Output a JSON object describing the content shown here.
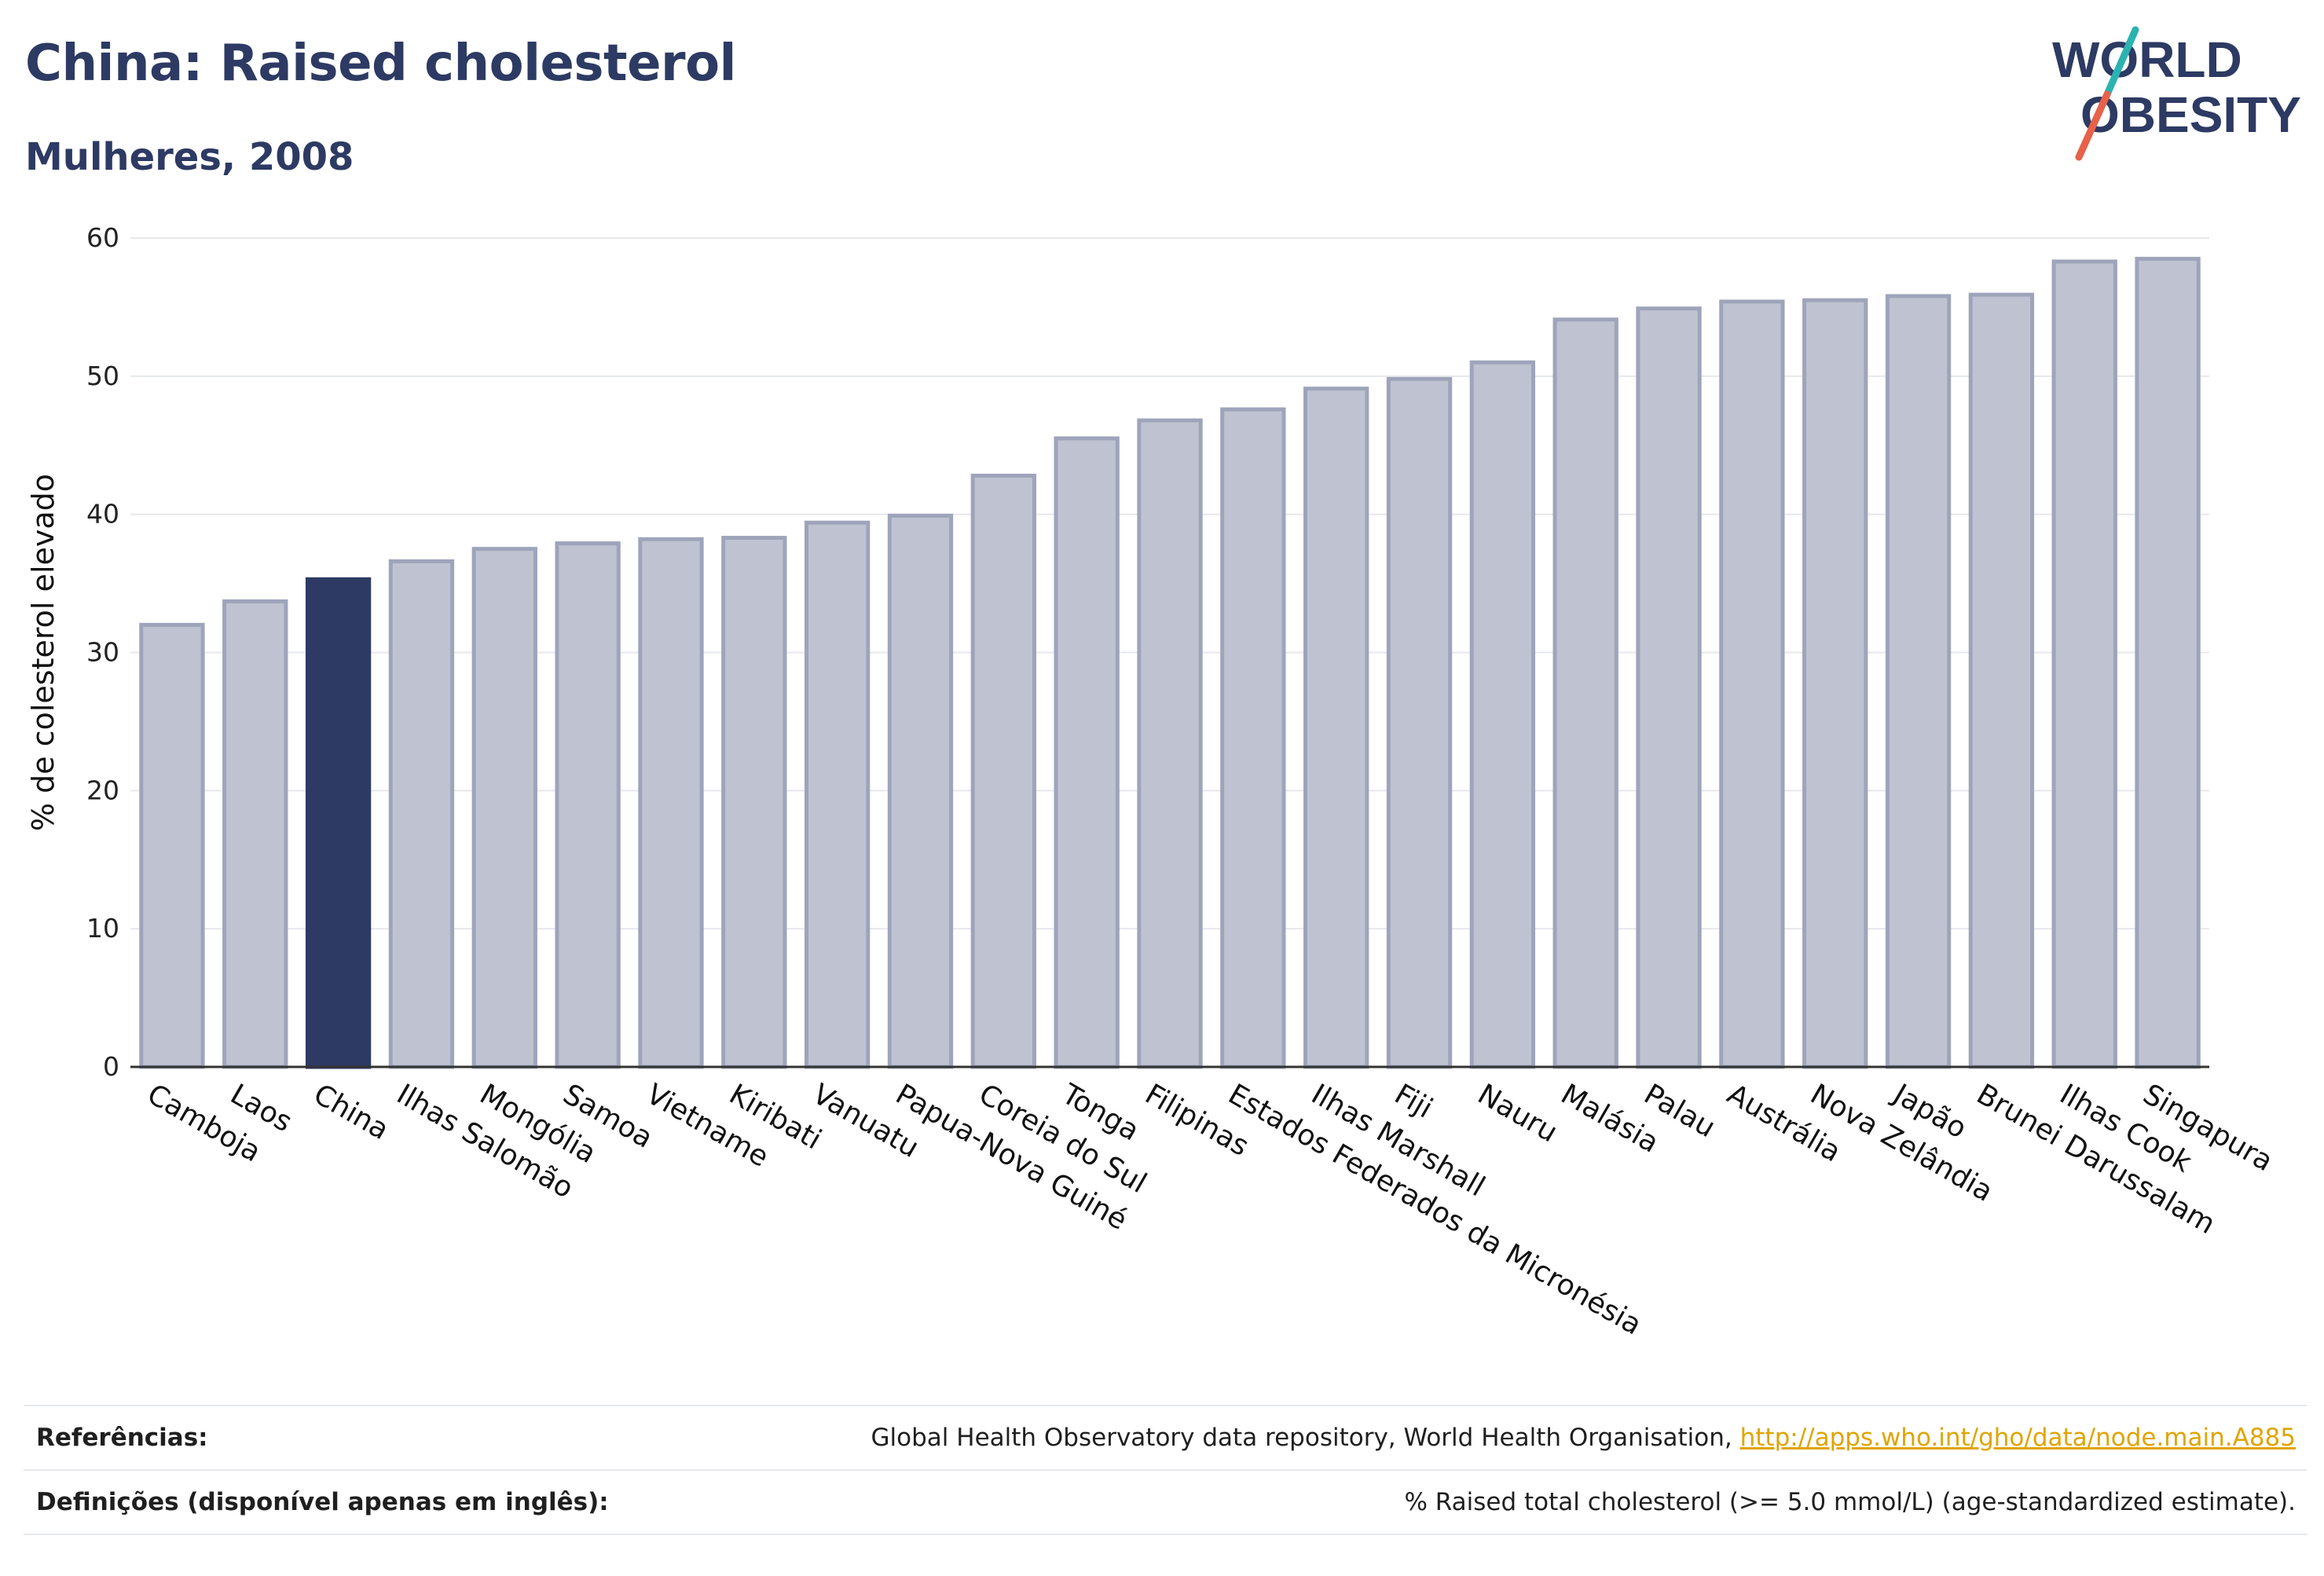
{
  "header": {
    "title": "China: Raised cholesterol",
    "subtitle": "Mulheres, 2008"
  },
  "logo": {
    "line1": "WORLD",
    "line2": "OBESITY",
    "brand_color": "#2d3a63",
    "slash_colors": [
      "#2ab3b1",
      "#e8614a"
    ]
  },
  "colors": {
    "bar_default_fill": "#bfc3d1",
    "bar_default_stroke": "#9ea4ba",
    "bar_highlight_fill": "#2d3a63",
    "grid": "#e6e8ee"
  },
  "chart_data": {
    "type": "bar",
    "ylabel": "% de colesterol elevado",
    "ylim": [
      0,
      60
    ],
    "yticks": [
      0,
      10,
      20,
      30,
      40,
      50,
      60
    ],
    "grid": true,
    "highlight": "China",
    "categories": [
      "Camboja",
      "Laos",
      "China",
      "Ilhas Salomão",
      "Mongólia",
      "Samoa",
      "Vietname",
      "Kiribati",
      "Vanuatu",
      "Papua-Nova Guiné",
      "Coreia do Sul",
      "Tonga",
      "Filipinas",
      "Estados Federados da Micronésia",
      "Ilhas Marshall",
      "Fiji",
      "Nauru",
      "Malásia",
      "Palau",
      "Austrália",
      "Nova Zelândia",
      "Japão",
      "Brunei Darussalam",
      "Ilhas Cook",
      "Singapura"
    ],
    "values": [
      32.0,
      33.7,
      35.3,
      36.6,
      37.5,
      37.9,
      38.2,
      38.3,
      39.4,
      39.9,
      42.8,
      45.5,
      46.8,
      47.6,
      49.1,
      49.8,
      51.0,
      54.1,
      54.9,
      55.4,
      55.5,
      55.8,
      55.9,
      58.3,
      58.5
    ]
  },
  "footer": {
    "references_label": "Referências:",
    "references_text": "Global Health Observatory data repository, World Health Organisation, ",
    "references_link": "http://apps.who.int/gho/data/node.main.A885",
    "definitions_label": "Definições (disponível apenas em inglês):",
    "definitions_text": "% Raised total cholesterol (>= 5.0 mmol/L) (age-standardized estimate)."
  }
}
